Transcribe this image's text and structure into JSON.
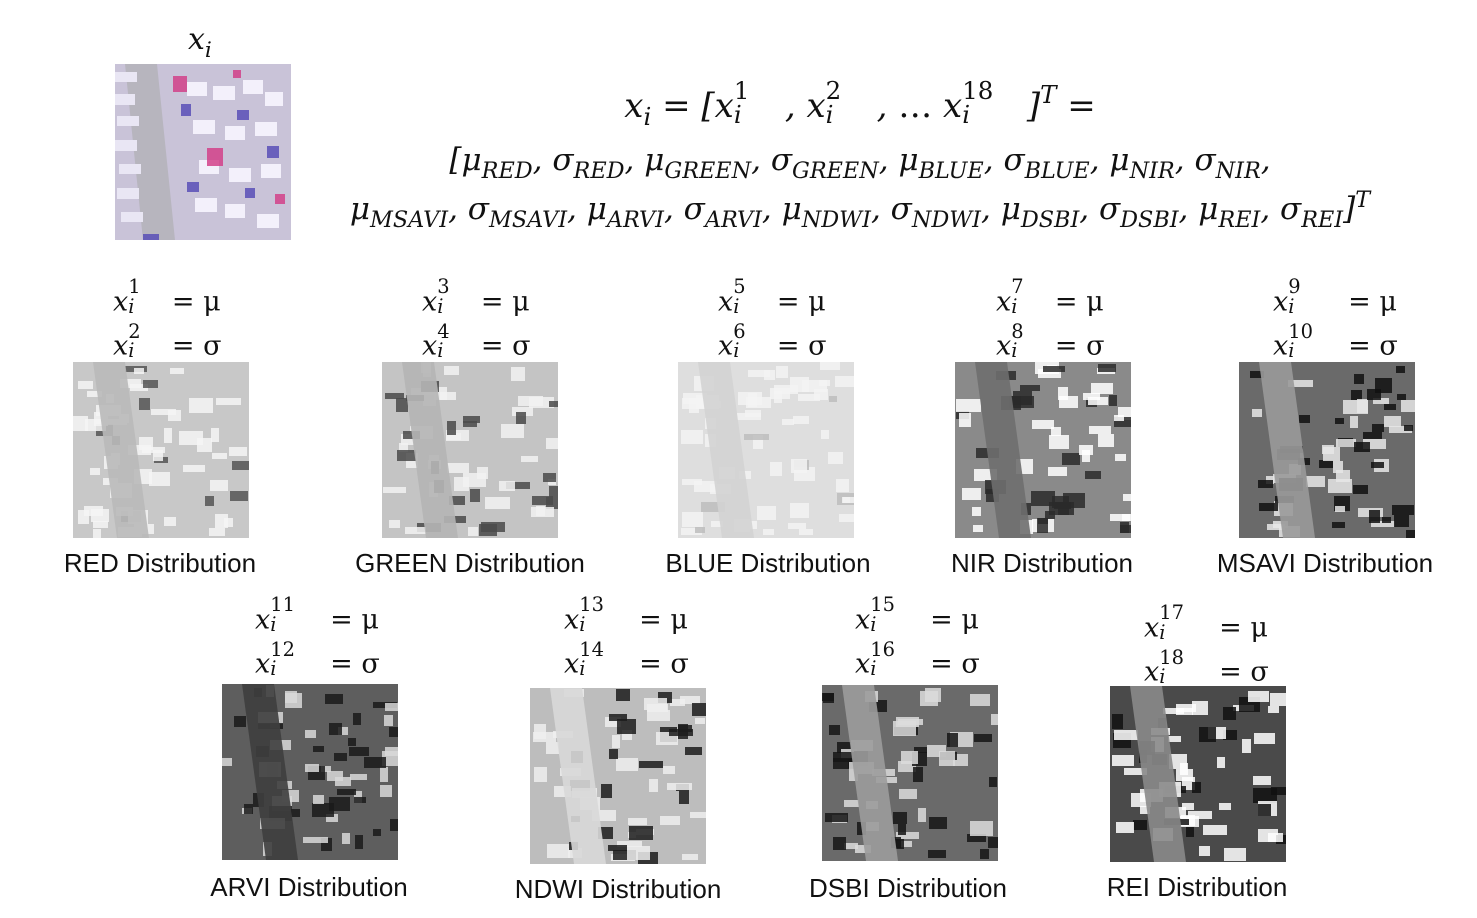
{
  "top": {
    "xi_label": "x",
    "xi_label_sub": "i",
    "formula_line1": [
      "x",
      "i",
      " = [",
      "x",
      "1",
      "i",
      ", ",
      "x",
      "2",
      "i",
      ", … ",
      "x",
      "18",
      "i",
      "]",
      "T",
      " ="
    ],
    "formula_line2": "[μRED, σRED, μGREEN, σGREEN, μBLUE, σBLUE, μNIR, σNIR,",
    "formula_line3": "μMSAVI, σMSAVI, μARVI, σARVI, μNDWI, σNDWI, μDSBI, σDSBI, μREI, σREI]T",
    "line2_terms": [
      {
        "sym": "μ",
        "sub": "RED"
      },
      {
        "sym": "σ",
        "sub": "RED"
      },
      {
        "sym": "μ",
        "sub": "GREEN"
      },
      {
        "sym": "σ",
        "sub": "GREEN"
      },
      {
        "sym": "μ",
        "sub": "BLUE"
      },
      {
        "sym": "σ",
        "sub": "BLUE"
      },
      {
        "sym": "μ",
        "sub": "NIR"
      },
      {
        "sym": "σ",
        "sub": "NIR"
      }
    ],
    "line3_terms": [
      {
        "sym": "μ",
        "sub": "MSAVI"
      },
      {
        "sym": "σ",
        "sub": "MSAVI"
      },
      {
        "sym": "μ",
        "sub": "ARVI"
      },
      {
        "sym": "σ",
        "sub": "ARVI"
      },
      {
        "sym": "μ",
        "sub": "NDWI"
      },
      {
        "sym": "σ",
        "sub": "NDWI"
      },
      {
        "sym": "μ",
        "sub": "DSBI"
      },
      {
        "sym": "σ",
        "sub": "DSBI"
      },
      {
        "sym": "μ",
        "sub": "REI"
      },
      {
        "sym": "σ",
        "sub": "REI"
      }
    ],
    "transpose_sup": "T"
  },
  "panels": [
    {
      "id": "red",
      "label": "RED Distribution",
      "mu_idx": "1",
      "sigma_idx": "2"
    },
    {
      "id": "green",
      "label": "GREEN Distribution",
      "mu_idx": "3",
      "sigma_idx": "4"
    },
    {
      "id": "blue",
      "label": "BLUE Distribution",
      "mu_idx": "5",
      "sigma_idx": "6"
    },
    {
      "id": "nir",
      "label": "NIR Distribution",
      "mu_idx": "7",
      "sigma_idx": "8"
    },
    {
      "id": "msavi",
      "label": "MSAVI Distribution",
      "mu_idx": "9",
      "sigma_idx": "10"
    },
    {
      "id": "arvi",
      "label": "ARVI Distribution",
      "mu_idx": "11",
      "sigma_idx": "12"
    },
    {
      "id": "ndwi",
      "label": "NDWI Distribution",
      "mu_idx": "13",
      "sigma_idx": "14"
    },
    {
      "id": "dsbi",
      "label": "DSBI Distribution",
      "mu_idx": "15",
      "sigma_idx": "16"
    },
    {
      "id": "rei",
      "label": "REI Distribution",
      "mu_idx": "17",
      "sigma_idx": "18"
    }
  ],
  "eq_var": "x",
  "eq_sub": "i",
  "eq_mu": "= μ",
  "eq_sigma": "= σ"
}
